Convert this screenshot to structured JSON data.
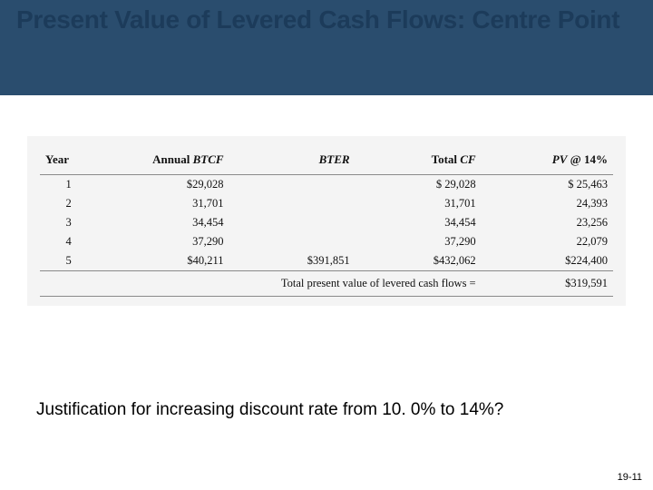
{
  "slide": {
    "title": "Present Value of Levered Cash Flows: Centre Point",
    "footnote": "Justification for increasing discount rate from 10. 0% to 14%?",
    "page_number": "19-11",
    "background_color": "#ffffff",
    "title_band_color": "#2a4d6e",
    "title_text_color": "#1c3b5a"
  },
  "table": {
    "type": "table",
    "background_color": "#f4f4f4",
    "rule_color": "#8a8a8a",
    "header_font_family": "Times New Roman",
    "header_font_size": 13,
    "cell_font_size": 12.5,
    "columns": [
      {
        "label": "Year",
        "align": "left",
        "width_pct": 10
      },
      {
        "label": "Annual BTCF",
        "align": "right",
        "width_pct": 23,
        "italic_part": "BTCF"
      },
      {
        "label": "BTER",
        "align": "right",
        "width_pct": 22,
        "italic": true
      },
      {
        "label": "Total CF",
        "align": "right",
        "width_pct": 22,
        "italic_part": "CF"
      },
      {
        "label": "PV @ 14%",
        "align": "right",
        "width_pct": 23,
        "italic_part": "PV"
      }
    ],
    "rows": [
      {
        "year": "1",
        "btcf": "$29,028",
        "bter": "",
        "total_cf": "$ 29,028",
        "pv": "$ 25,463"
      },
      {
        "year": "2",
        "btcf": "31,701",
        "bter": "",
        "total_cf": "31,701",
        "pv": "24,393"
      },
      {
        "year": "3",
        "btcf": "34,454",
        "bter": "",
        "total_cf": "34,454",
        "pv": "23,256"
      },
      {
        "year": "4",
        "btcf": "37,290",
        "bter": "",
        "total_cf": "37,290",
        "pv": "22,079"
      },
      {
        "year": "5",
        "btcf": "$40,211",
        "bter": "$391,851",
        "total_cf": "$432,062",
        "pv": "$224,400"
      }
    ],
    "total": {
      "label": "Total present value of levered cash flows =",
      "value": "$319,591"
    }
  }
}
